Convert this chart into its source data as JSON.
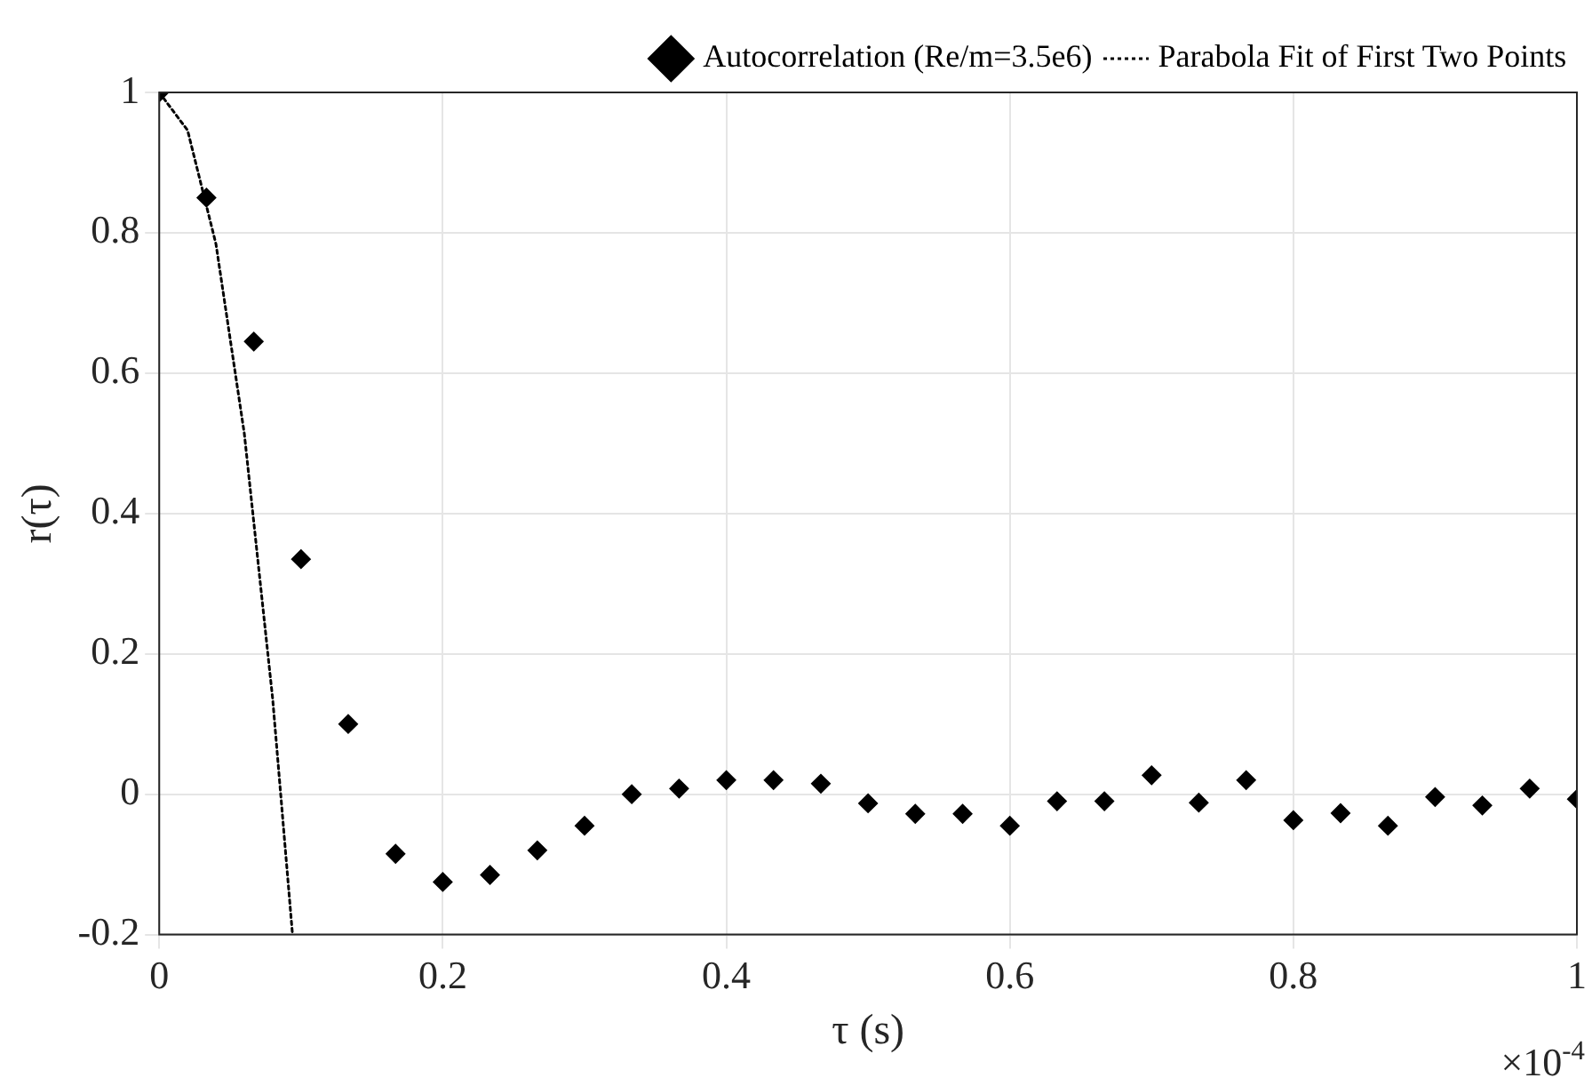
{
  "chart_data": {
    "type": "scatter",
    "xlabel": "τ (s)",
    "ylabel": "r(τ)",
    "xlim": [
      0,
      1
    ],
    "ylim": [
      -0.2,
      1
    ],
    "xticks": [
      0,
      0.2,
      0.4,
      0.6,
      0.8,
      1
    ],
    "yticks": [
      -0.2,
      0,
      0.2,
      0.4,
      0.6,
      0.8,
      1
    ],
    "grid": true,
    "legend": "top right",
    "annotations": [
      "×10$^{-4}$"
    ],
    "series": [
      {
        "name": "Autocorrelation (Re/m=3.5e6)",
        "type": "scatter",
        "color": "#000000",
        "marker": "diamond",
        "x": [
          0,
          0.0333,
          0.0667,
          0.1,
          0.1333,
          0.1667,
          0.2,
          0.2333,
          0.2667,
          0.3,
          0.3333,
          0.3667,
          0.4,
          0.4333,
          0.4667,
          0.5,
          0.5333,
          0.5667,
          0.6,
          0.6333,
          0.6667,
          0.7,
          0.7333,
          0.7667,
          0.8,
          0.8333,
          0.8667,
          0.9,
          0.9333,
          0.9667,
          1
        ],
        "values": [
          1,
          0.85,
          0.645,
          0.335,
          0.1,
          -0.085,
          -0.125,
          -0.115,
          -0.08,
          -0.045,
          0,
          0.008,
          0.02,
          0.02,
          0.015,
          -0.013,
          -0.028,
          -0.028,
          -0.045,
          -0.01,
          -0.01,
          0.027,
          -0.012,
          0.02,
          -0.037,
          -0.027,
          -0.045,
          -0.004,
          -0.016,
          0.008,
          -0.007
        ]
      },
      {
        "name": "Parabola Fit of First Two Points",
        "type": "line",
        "color": "#000000",
        "marker": "none",
        "line_style": "dotted",
        "x": [
          0,
          0.02,
          0.04,
          0.06,
          0.08,
          0.094
        ],
        "values": [
          1,
          0.946,
          0.784,
          0.514,
          0.136,
          -0.2
        ]
      }
    ]
  }
}
